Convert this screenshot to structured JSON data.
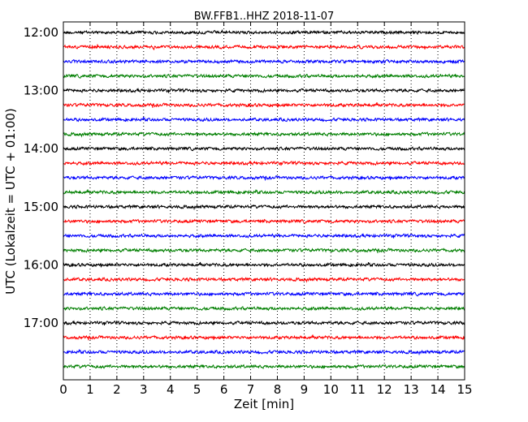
{
  "chart_data": {
    "type": "line",
    "title": "BW.FFB1..HHZ 2018-11-07",
    "xlabel": "Zeit  [min]",
    "ylabel": "UTC (Lokalzeit = UTC + 01:00)",
    "xlim": [
      0,
      15
    ],
    "x_ticks": [
      "0",
      "1",
      "2",
      "3",
      "4",
      "5",
      "6",
      "7",
      "8",
      "9",
      "10",
      "11",
      "12",
      "13",
      "14",
      "15"
    ],
    "y_ticks": [
      "12:00",
      "13:00",
      "14:00",
      "15:00",
      "16:00",
      "17:00"
    ],
    "grid": "vertical dotted at each minute",
    "trace_interval_min": 15,
    "trace_start_times": [
      "12:00",
      "12:15",
      "12:30",
      "12:45",
      "13:00",
      "13:15",
      "13:30",
      "13:45",
      "14:00",
      "14:15",
      "14:30",
      "14:45",
      "15:00",
      "15:15",
      "15:30",
      "15:45",
      "16:00",
      "16:15",
      "16:30",
      "16:45",
      "17:00",
      "17:15",
      "17:30",
      "17:45"
    ],
    "trace_colors": [
      "#000000",
      "#ff0000",
      "#0000ff",
      "#007f00"
    ]
  }
}
